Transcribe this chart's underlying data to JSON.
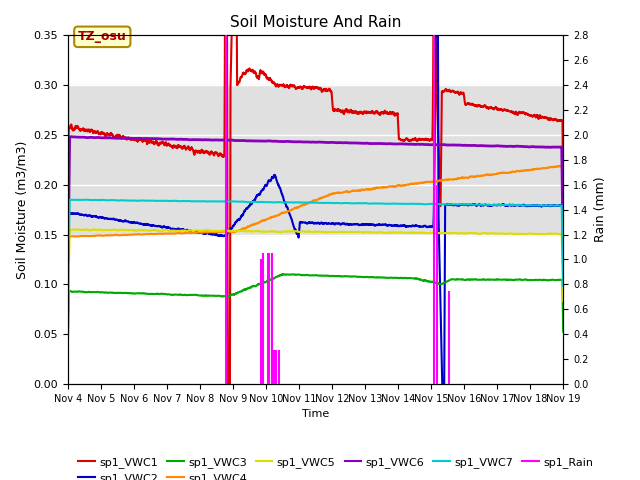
{
  "title": "Soil Moisture And Rain",
  "xlabel": "Time",
  "ylabel_left": "Soil Moisture (m3/m3)",
  "ylabel_right": "Rain (mm)",
  "annotation": "TZ_osu",
  "ylim_left": [
    0,
    0.35
  ],
  "ylim_right": [
    0,
    2.8
  ],
  "x_tick_labels": [
    "Nov 4",
    "Nov 5",
    "Nov 6",
    "Nov 7",
    "Nov 8",
    "Nov 9",
    "Nov 10",
    "Nov 11",
    "Nov 12",
    "Nov 13",
    "Nov 14",
    "Nov 15",
    "Nov 16",
    "Nov 17",
    "Nov 18",
    "Nov 19"
  ],
  "colors": {
    "VWC1": "#dd0000",
    "VWC2": "#0000cc",
    "VWC3": "#00aa00",
    "VWC4": "#ff8800",
    "VWC5": "#dddd00",
    "VWC6": "#8800bb",
    "VWC7": "#00cccc",
    "Rain": "#ff00ff"
  },
  "bg_band": [
    0.15,
    0.3
  ],
  "bg_color": "#e0e0e0"
}
